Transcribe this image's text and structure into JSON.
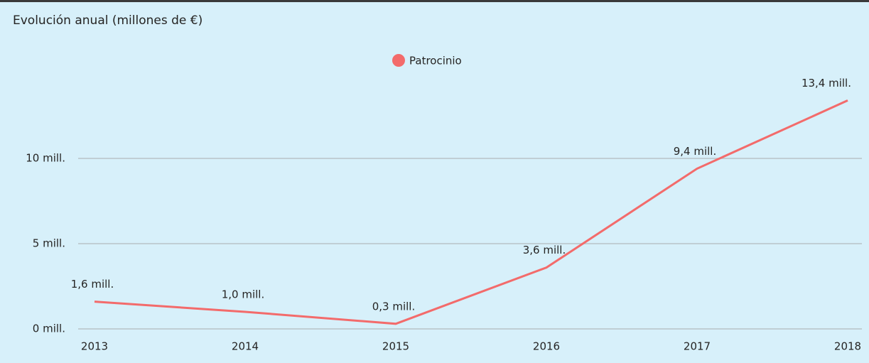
{
  "chart_data": {
    "type": "line",
    "title": "Evolución anual (millones de €)",
    "categories": [
      "2013",
      "2014",
      "2015",
      "2016",
      "2017",
      "2018"
    ],
    "series": [
      {
        "name": "Patrocinio",
        "color": "#f36b6b",
        "values": [
          1.6,
          1.0,
          0.3,
          3.6,
          9.4,
          13.4
        ],
        "value_labels": [
          "1,6 mill.",
          "1,0 mill.",
          "0,3 mill.",
          "3,6 mill.",
          "9,4 mill.",
          "13,4 mill."
        ]
      }
    ],
    "ylim": [
      0,
      15
    ],
    "yticks": [
      {
        "value": 0,
        "label": "0 mill."
      },
      {
        "value": 5,
        "label": "5 mill."
      },
      {
        "value": 10,
        "label": "10 mill."
      }
    ],
    "grid": true,
    "legend": "top"
  }
}
